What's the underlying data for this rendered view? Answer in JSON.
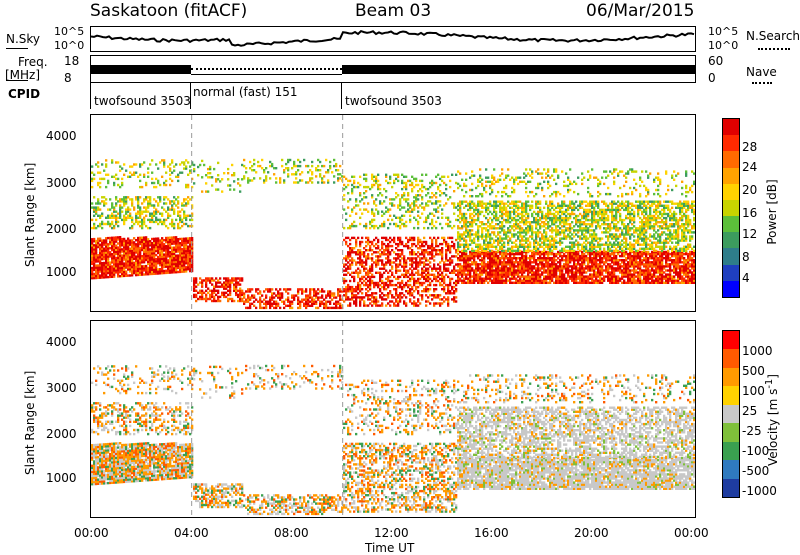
{
  "header": {
    "station": "Saskatoon (fitACF)",
    "beam": "Beam 03",
    "date": "06/Mar/2015"
  },
  "top_panels": {
    "nsky_label": "N.Sky",
    "nsky_ticks": [
      "10^5",
      "10^0"
    ],
    "nsearch_label": "N.Search",
    "nsearch_ticks": [
      "10^5",
      "10^0"
    ],
    "freq_label_line1": "Freq.",
    "freq_label_line2": "[MHz]",
    "freq_ticks": [
      "18",
      "8"
    ],
    "nave_label": "Nave",
    "nave_ticks": [
      "60",
      "0"
    ],
    "cpid_label": "CPID",
    "cpid_segments": [
      {
        "label": "twofsound 3503",
        "start_hour": 0,
        "end_hour": 4
      },
      {
        "label": "normal (fast) 151",
        "start_hour": 4,
        "end_hour": 10
      },
      {
        "label": "twofsound 3503",
        "start_hour": 10,
        "end_hour": 24
      }
    ]
  },
  "chart_data": [
    {
      "type": "heatmap",
      "name": "power",
      "ylabel": "Slant Range [km]",
      "yticks": [
        "4000",
        "3000",
        "2000",
        "1000"
      ],
      "ylim": [
        200,
        4500
      ],
      "xlim": [
        0,
        24
      ],
      "colorbar_label": "Power [dB]",
      "colorbar_ticks": [
        "28",
        "24",
        "20",
        "16",
        "12",
        "8",
        "4"
      ],
      "colorbar_colors": [
        "#0000ff",
        "#1f3fbf",
        "#2e7d8a",
        "#3c9c5e",
        "#5cbf3a",
        "#c8d400",
        "#ffd200",
        "#ffa200",
        "#ff6a00",
        "#ff2a00",
        "#e00000"
      ]
    },
    {
      "type": "heatmap",
      "name": "velocity",
      "ylabel": "Slant Range [km]",
      "yticks": [
        "4000",
        "3000",
        "2000",
        "1000"
      ],
      "ylim": [
        200,
        4500
      ],
      "xlim": [
        0,
        24
      ],
      "colorbar_label": "Velocity [m s^-1]",
      "colorbar_ticks": [
        "1000",
        "500",
        "100",
        "25",
        "-25",
        "-100",
        "-500",
        "-1000"
      ],
      "colorbar_colors": [
        "#1e3ca0",
        "#2f7abf",
        "#3aa050",
        "#7fc03a",
        "#c8c8c8",
        "#ffd200",
        "#ff9a00",
        "#ff5a00",
        "#ff0000"
      ],
      "xlabel": "Time UT",
      "xticks": [
        "00:00",
        "04:00",
        "08:00",
        "12:00",
        "16:00",
        "20:00",
        "00:00"
      ]
    }
  ]
}
